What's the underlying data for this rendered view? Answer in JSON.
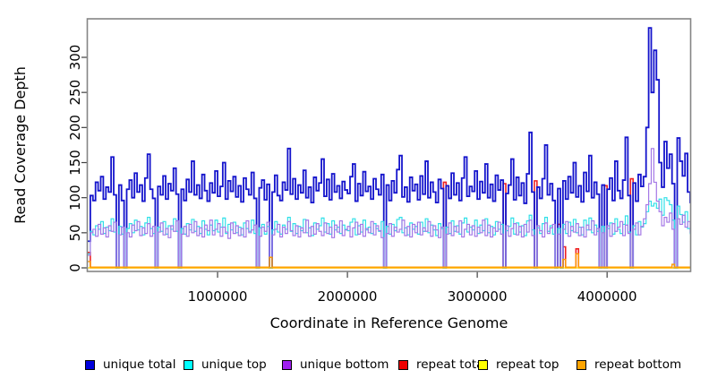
{
  "chart_data": {
    "type": "line",
    "step_style": true,
    "title": "",
    "xlabel": "Coordinate in Reference Genome",
    "ylabel": "Read Coverage Depth",
    "xlim": [
      0,
      4640000
    ],
    "ylim": [
      0,
      350
    ],
    "x_ticks": [
      1000000,
      2000000,
      3000000,
      4000000
    ],
    "x_tick_labels": [
      "1000000",
      "2000000",
      "3000000",
      "4000000"
    ],
    "y_ticks": [
      0,
      50,
      100,
      150,
      200,
      250,
      300
    ],
    "y_tick_labels": [
      "0",
      "50",
      "100",
      "150",
      "200",
      "250",
      "300"
    ],
    "grid": false,
    "legend_position": "bottom",
    "bin_size": 20000,
    "n_bins": 233,
    "draw_order": [
      3,
      0,
      1,
      2,
      4,
      5
    ],
    "series": [
      {
        "name": "unique total",
        "color": "#0000DD",
        "line_color": "#1414CC",
        "values": [
          38,
          103,
          96,
          122,
          110,
          130,
          98,
          115,
          108,
          158,
          104,
          0,
          118,
          96,
          0,
          112,
          125,
          100,
          135,
          108,
          118,
          95,
          128,
          162,
          112,
          99,
          0,
          116,
          104,
          131,
          98,
          120,
          110,
          142,
          105,
          0,
          112,
          96,
          126,
          108,
          152,
          104,
          118,
          99,
          133,
          110,
          95,
          121,
          107,
          138,
          102,
          116,
          150,
          98,
          124,
          109,
          130,
          101,
          117,
          94,
          128,
          112,
          104,
          136,
          99,
          0,
          114,
          125,
          97,
          119,
          0,
          108,
          132,
          103,
          96,
          122,
          111,
          170,
          105,
          127,
          98,
          118,
          107,
          139,
          100,
          115,
          93,
          129,
          110,
          121,
          155,
          102,
          126,
          97,
          134,
          108,
          117,
          99,
          123,
          111,
          106,
          130,
          148,
          95,
          120,
          103,
          137,
          109,
          116,
          98,
          127,
          112,
          104,
          133,
          0,
          118,
          96,
          124,
          107,
          140,
          160,
          101,
          115,
          94,
          129,
          110,
          119,
          97,
          131,
          105,
          152,
          100,
          122,
          108,
          93,
          126,
          113,
          0,
          117,
          99,
          135,
          104,
          121,
          96,
          128,
          158,
          102,
          116,
          109,
          138,
          98,
          123,
          107,
          148,
          100,
          119,
          95,
          132,
          111,
          125,
          0,
          106,
          118,
          155,
          97,
          129,
          103,
          121,
          92,
          134,
          193,
          108,
          0,
          115,
          99,
          127,
          175,
          104,
          120,
          96,
          0,
          113,
          0,
          124,
          98,
          130,
          107,
          150,
          101,
          117,
          94,
          136,
          109,
          160,
          100,
          122,
          105,
          0,
          118,
          0,
          112,
          128,
          96,
          152,
          110,
          99,
          125,
          186,
          103,
          0,
          121,
          95,
          133,
          116,
          130,
          200,
          342,
          250,
          310,
          268,
          150,
          115,
          180,
          142,
          162,
          120,
          0,
          185,
          152,
          131,
          163,
          108,
          92
        ]
      },
      {
        "name": "unique top",
        "color": "#00FFFF",
        "line_color": "#30E0E8",
        "values": [
          20,
          52,
          47,
          60,
          55,
          66,
          49,
          58,
          53,
          70,
          51,
          0,
          59,
          48,
          0,
          56,
          63,
          50,
          68,
          54,
          59,
          47,
          64,
          72,
          56,
          49,
          0,
          58,
          52,
          66,
          48,
          60,
          55,
          70,
          52,
          0,
          56,
          48,
          63,
          54,
          69,
          52,
          59,
          49,
          67,
          55,
          47,
          61,
          53,
          68,
          51,
          58,
          71,
          49,
          62,
          54,
          65,
          50,
          58,
          47,
          64,
          56,
          52,
          68,
          49,
          0,
          57,
          62,
          48,
          59,
          0,
          54,
          66,
          51,
          48,
          61,
          55,
          72,
          52,
          63,
          49,
          59,
          53,
          69,
          50,
          57,
          46,
          64,
          55,
          60,
          71,
          51,
          63,
          48,
          67,
          54,
          58,
          49,
          61,
          55,
          53,
          65,
          70,
          47,
          60,
          51,
          68,
          54,
          58,
          49,
          63,
          56,
          52,
          66,
          0,
          59,
          48,
          62,
          53,
          69,
          72,
          50,
          57,
          47,
          64,
          55,
          59,
          48,
          65,
          52,
          70,
          50,
          61,
          54,
          46,
          63,
          56,
          0,
          58,
          49,
          67,
          52,
          60,
          48,
          64,
          71,
          51,
          58,
          54,
          68,
          49,
          61,
          53,
          70,
          50,
          59,
          47,
          66,
          55,
          62,
          0,
          53,
          59,
          71,
          48,
          64,
          51,
          60,
          46,
          67,
          75,
          54,
          0,
          57,
          49,
          63,
          72,
          52,
          60,
          48,
          0,
          56,
          0,
          62,
          49,
          65,
          53,
          69,
          50,
          58,
          47,
          68,
          54,
          71,
          50,
          61,
          52,
          0,
          59,
          0,
          56,
          64,
          48,
          70,
          55,
          49,
          62,
          74,
          51,
          0,
          60,
          47,
          66,
          58,
          63,
          80,
          95,
          88,
          92,
          85,
          98,
          75,
          100,
          96,
          90,
          68,
          0,
          88,
          76,
          65,
          80,
          56,
          48
        ]
      },
      {
        "name": "unique bottom",
        "color": "#A020F0",
        "line_color": "#A478E6",
        "values": [
          18,
          50,
          55,
          45,
          62,
          48,
          57,
          44,
          60,
          52,
          65,
          0,
          47,
          58,
          0,
          50,
          44,
          61,
          53,
          66,
          46,
          57,
          49,
          63,
          45,
          59,
          0,
          51,
          64,
          47,
          56,
          43,
          60,
          52,
          67,
          0,
          48,
          59,
          45,
          62,
          50,
          66,
          46,
          57,
          44,
          61,
          53,
          68,
          47,
          55,
          63,
          45,
          58,
          51,
          42,
          64,
          49,
          60,
          46,
          56,
          44,
          67,
          50,
          54,
          61,
          0,
          45,
          58,
          52,
          65,
          0,
          47,
          55,
          62,
          44,
          58,
          49,
          66,
          53,
          46,
          60,
          44,
          57,
          50,
          68,
          45,
          59,
          48,
          63,
          52,
          46,
          64,
          49,
          58,
          43,
          61,
          51,
          67,
          46,
          54,
          59,
          44,
          57,
          65,
          48,
          62,
          45,
          56,
          50,
          66,
          47,
          60,
          53,
          43,
          0,
          49,
          63,
          45,
          58,
          51,
          55,
          68,
          46,
          59,
          44,
          62,
          50,
          65,
          47,
          57,
          52,
          66,
          45,
          60,
          54,
          43,
          58,
          0,
          48,
          64,
          46,
          59,
          51,
          67,
          44,
          55,
          62,
          47,
          60,
          45,
          58,
          50,
          68,
          46,
          61,
          44,
          57,
          52,
          65,
          48,
          0,
          60,
          45,
          56,
          63,
          47,
          59,
          44,
          62,
          51,
          68,
          46,
          0,
          60,
          53,
          44,
          64,
          49,
          57,
          62,
          0,
          48,
          0,
          55,
          66,
          45,
          59,
          51,
          63,
          46,
          58,
          44,
          61,
          54,
          67,
          47,
          56,
          0,
          50,
          0,
          60,
          45,
          63,
          52,
          58,
          66,
          46,
          61,
          49,
          0,
          55,
          64,
          47,
          59,
          70,
          90,
          120,
          170,
          122,
          95,
          80,
          60,
          72,
          65,
          78,
          55,
          0,
          70,
          62,
          75,
          58,
          66,
          50
        ]
      },
      {
        "name": "repeat total",
        "color": "#EE0000",
        "line_color": "#EE2222",
        "baseline": 0,
        "spikes": [
          [
            0,
            22
          ],
          [
            137,
            122
          ],
          [
            160,
            120
          ],
          [
            172,
            124
          ],
          [
            181,
            62
          ],
          [
            183,
            30
          ],
          [
            188,
            27
          ],
          [
            199,
            117
          ],
          [
            209,
            127
          ]
        ]
      },
      {
        "name": "repeat top",
        "color": "#FFFF00",
        "line_color": "#FFE800",
        "baseline": 0,
        "spikes": []
      },
      {
        "name": "repeat bottom",
        "color": "#FFA500",
        "line_color": "#FF9900",
        "baseline": 1,
        "spikes": [
          [
            0,
            9
          ],
          [
            70,
            15
          ],
          [
            183,
            12
          ],
          [
            188,
            20
          ],
          [
            225,
            5
          ]
        ]
      }
    ]
  },
  "axis_style": {
    "box_color": "#858585",
    "tick_color": "#404040",
    "label_color": "#000000"
  }
}
